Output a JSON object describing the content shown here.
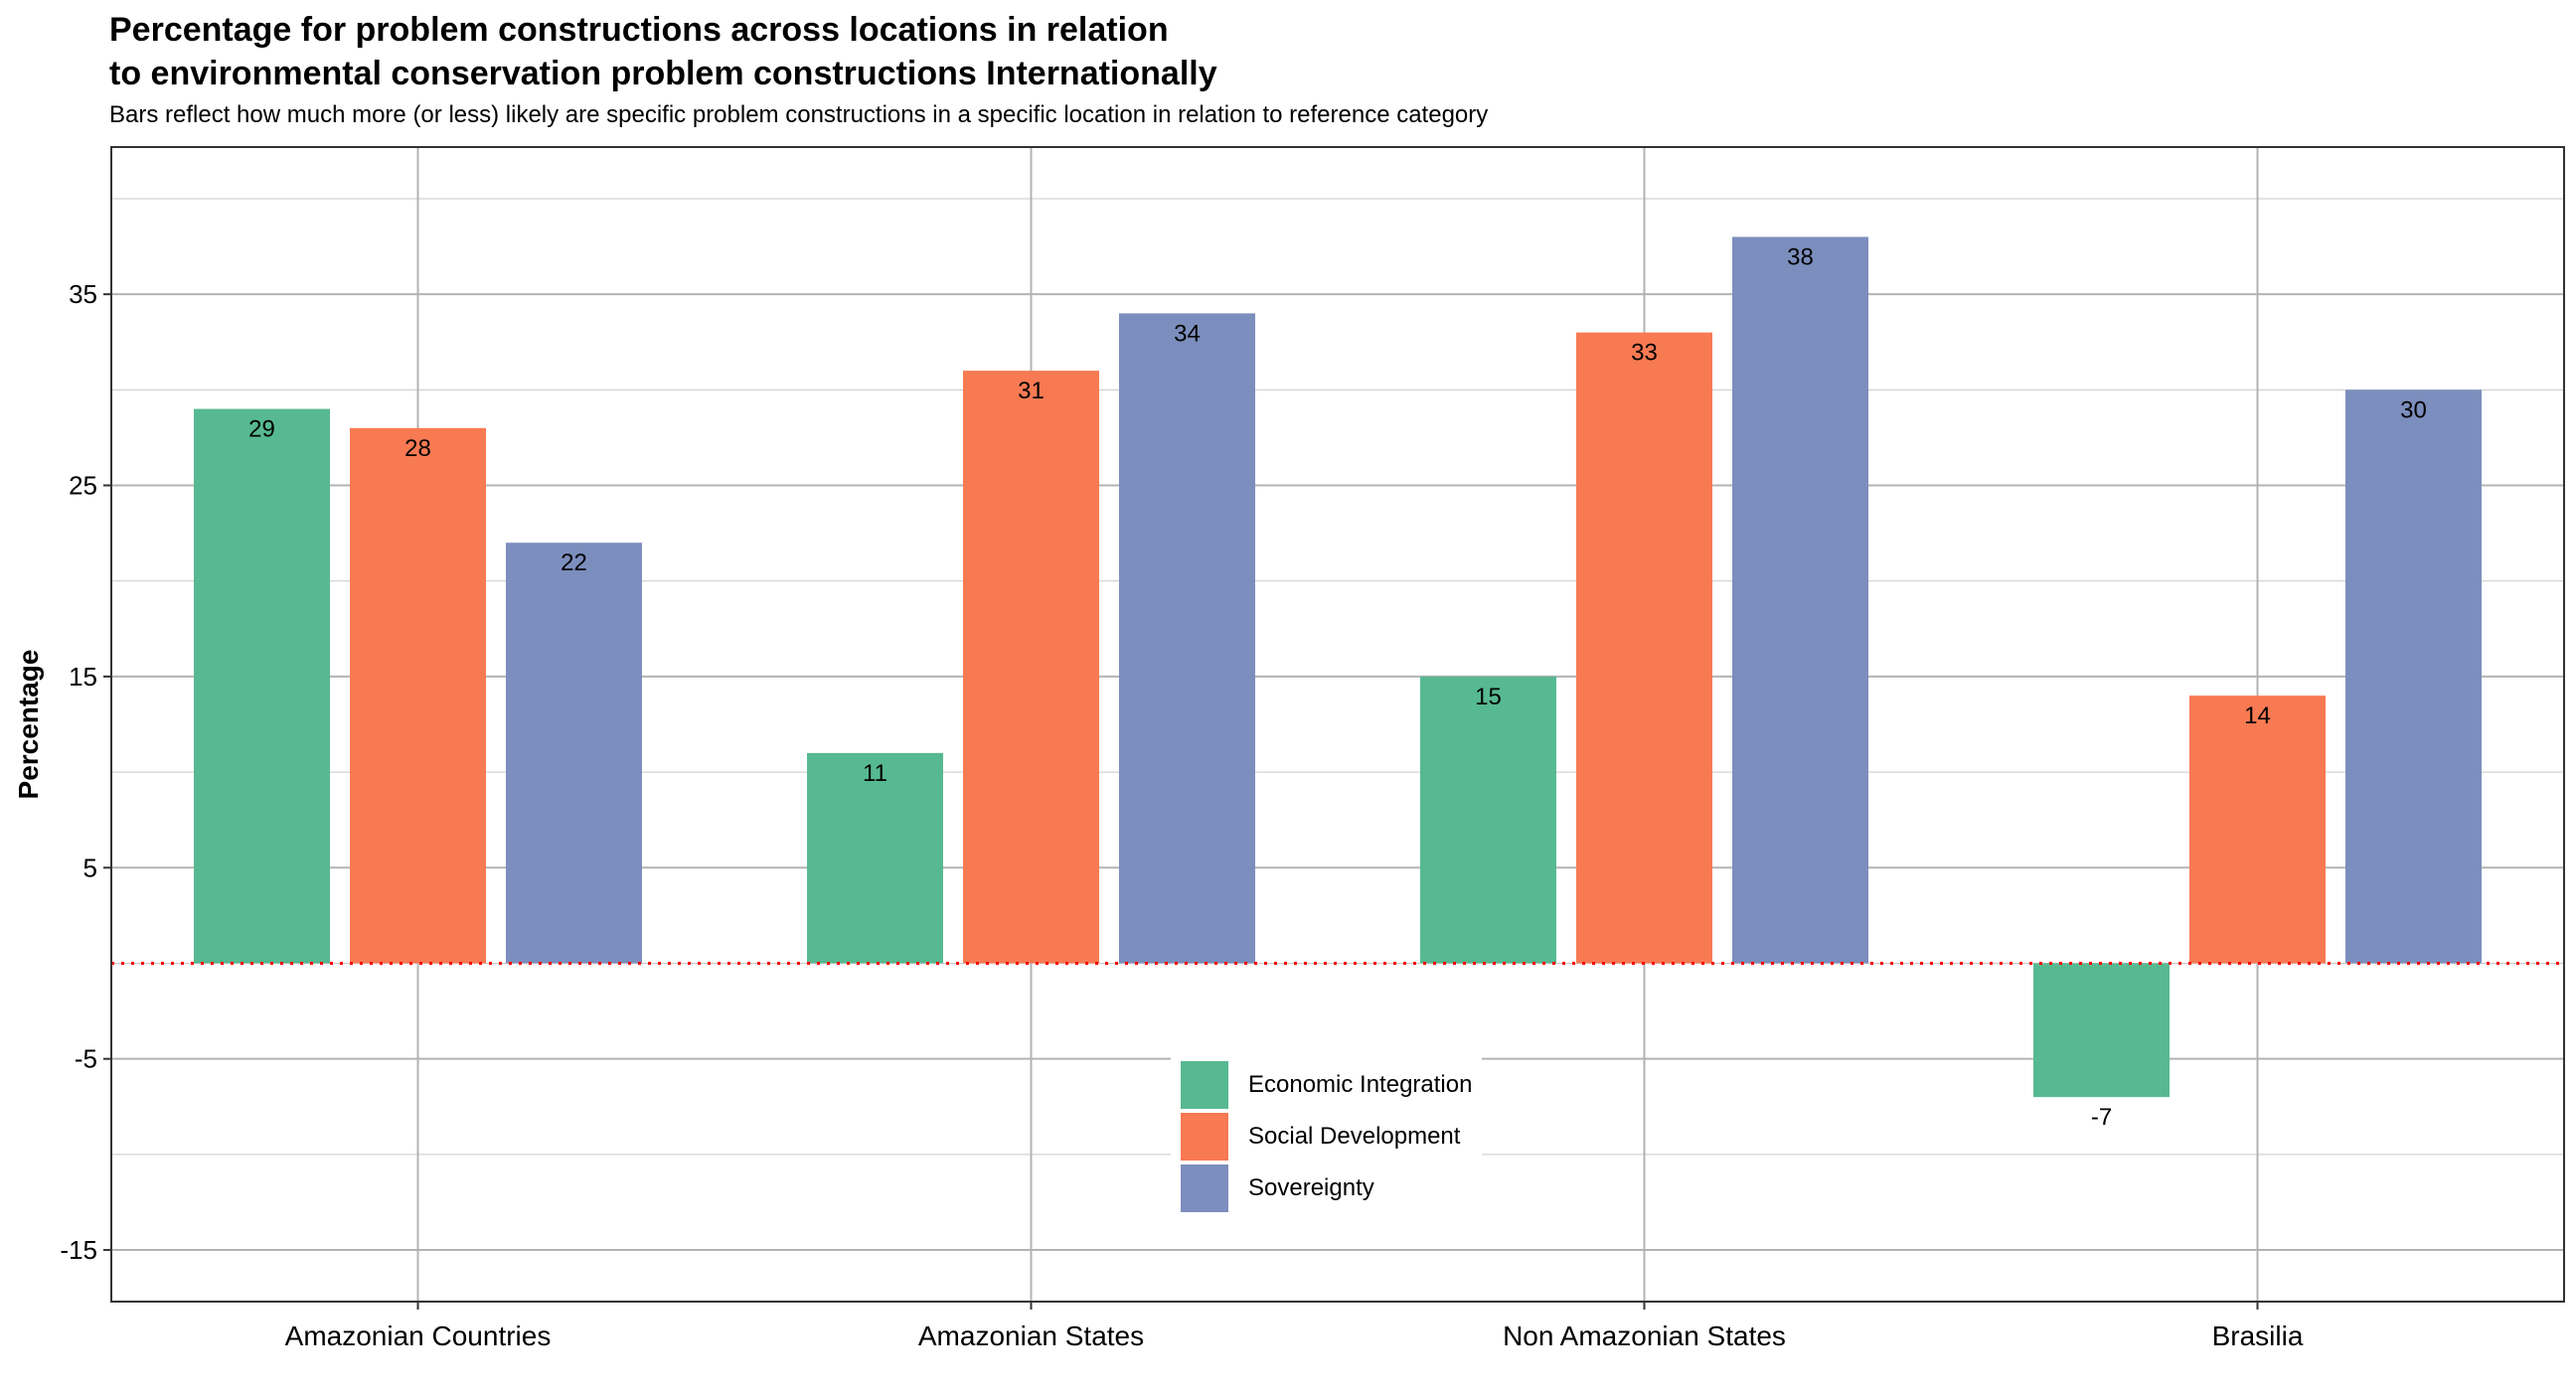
{
  "chart_data": {
    "type": "bar",
    "title_line1": "Percentage for problem constructions across locations in relation",
    "title_line2": "to environmental conservation problem constructions Internationally",
    "subtitle": "Bars reflect how much more (or less) likely are specific problem constructions in a specific location in relation to reference category",
    "xlabel": "",
    "ylabel": "Percentage",
    "categories": [
      "Amazonian Countries",
      "Amazonian States",
      "Non Amazonian States",
      "Brasilia"
    ],
    "series": [
      {
        "name": "Economic Integration",
        "color": "#57b991",
        "values": [
          29,
          11,
          15,
          -7
        ]
      },
      {
        "name": "Social Development",
        "color": "#f87a53",
        "values": [
          28,
          31,
          33,
          14
        ]
      },
      {
        "name": "Sovereignty",
        "color": "#7c8ebd",
        "values": [
          22,
          34,
          38,
          30
        ]
      }
    ],
    "yticks": [
      -15,
      -5,
      5,
      15,
      25,
      35
    ],
    "ylim": [
      -17.7,
      42.7
    ],
    "reference_line": 0,
    "reference_line_color": "#ff0000",
    "grid": true,
    "legend_position": "bottom-center inside plot"
  }
}
